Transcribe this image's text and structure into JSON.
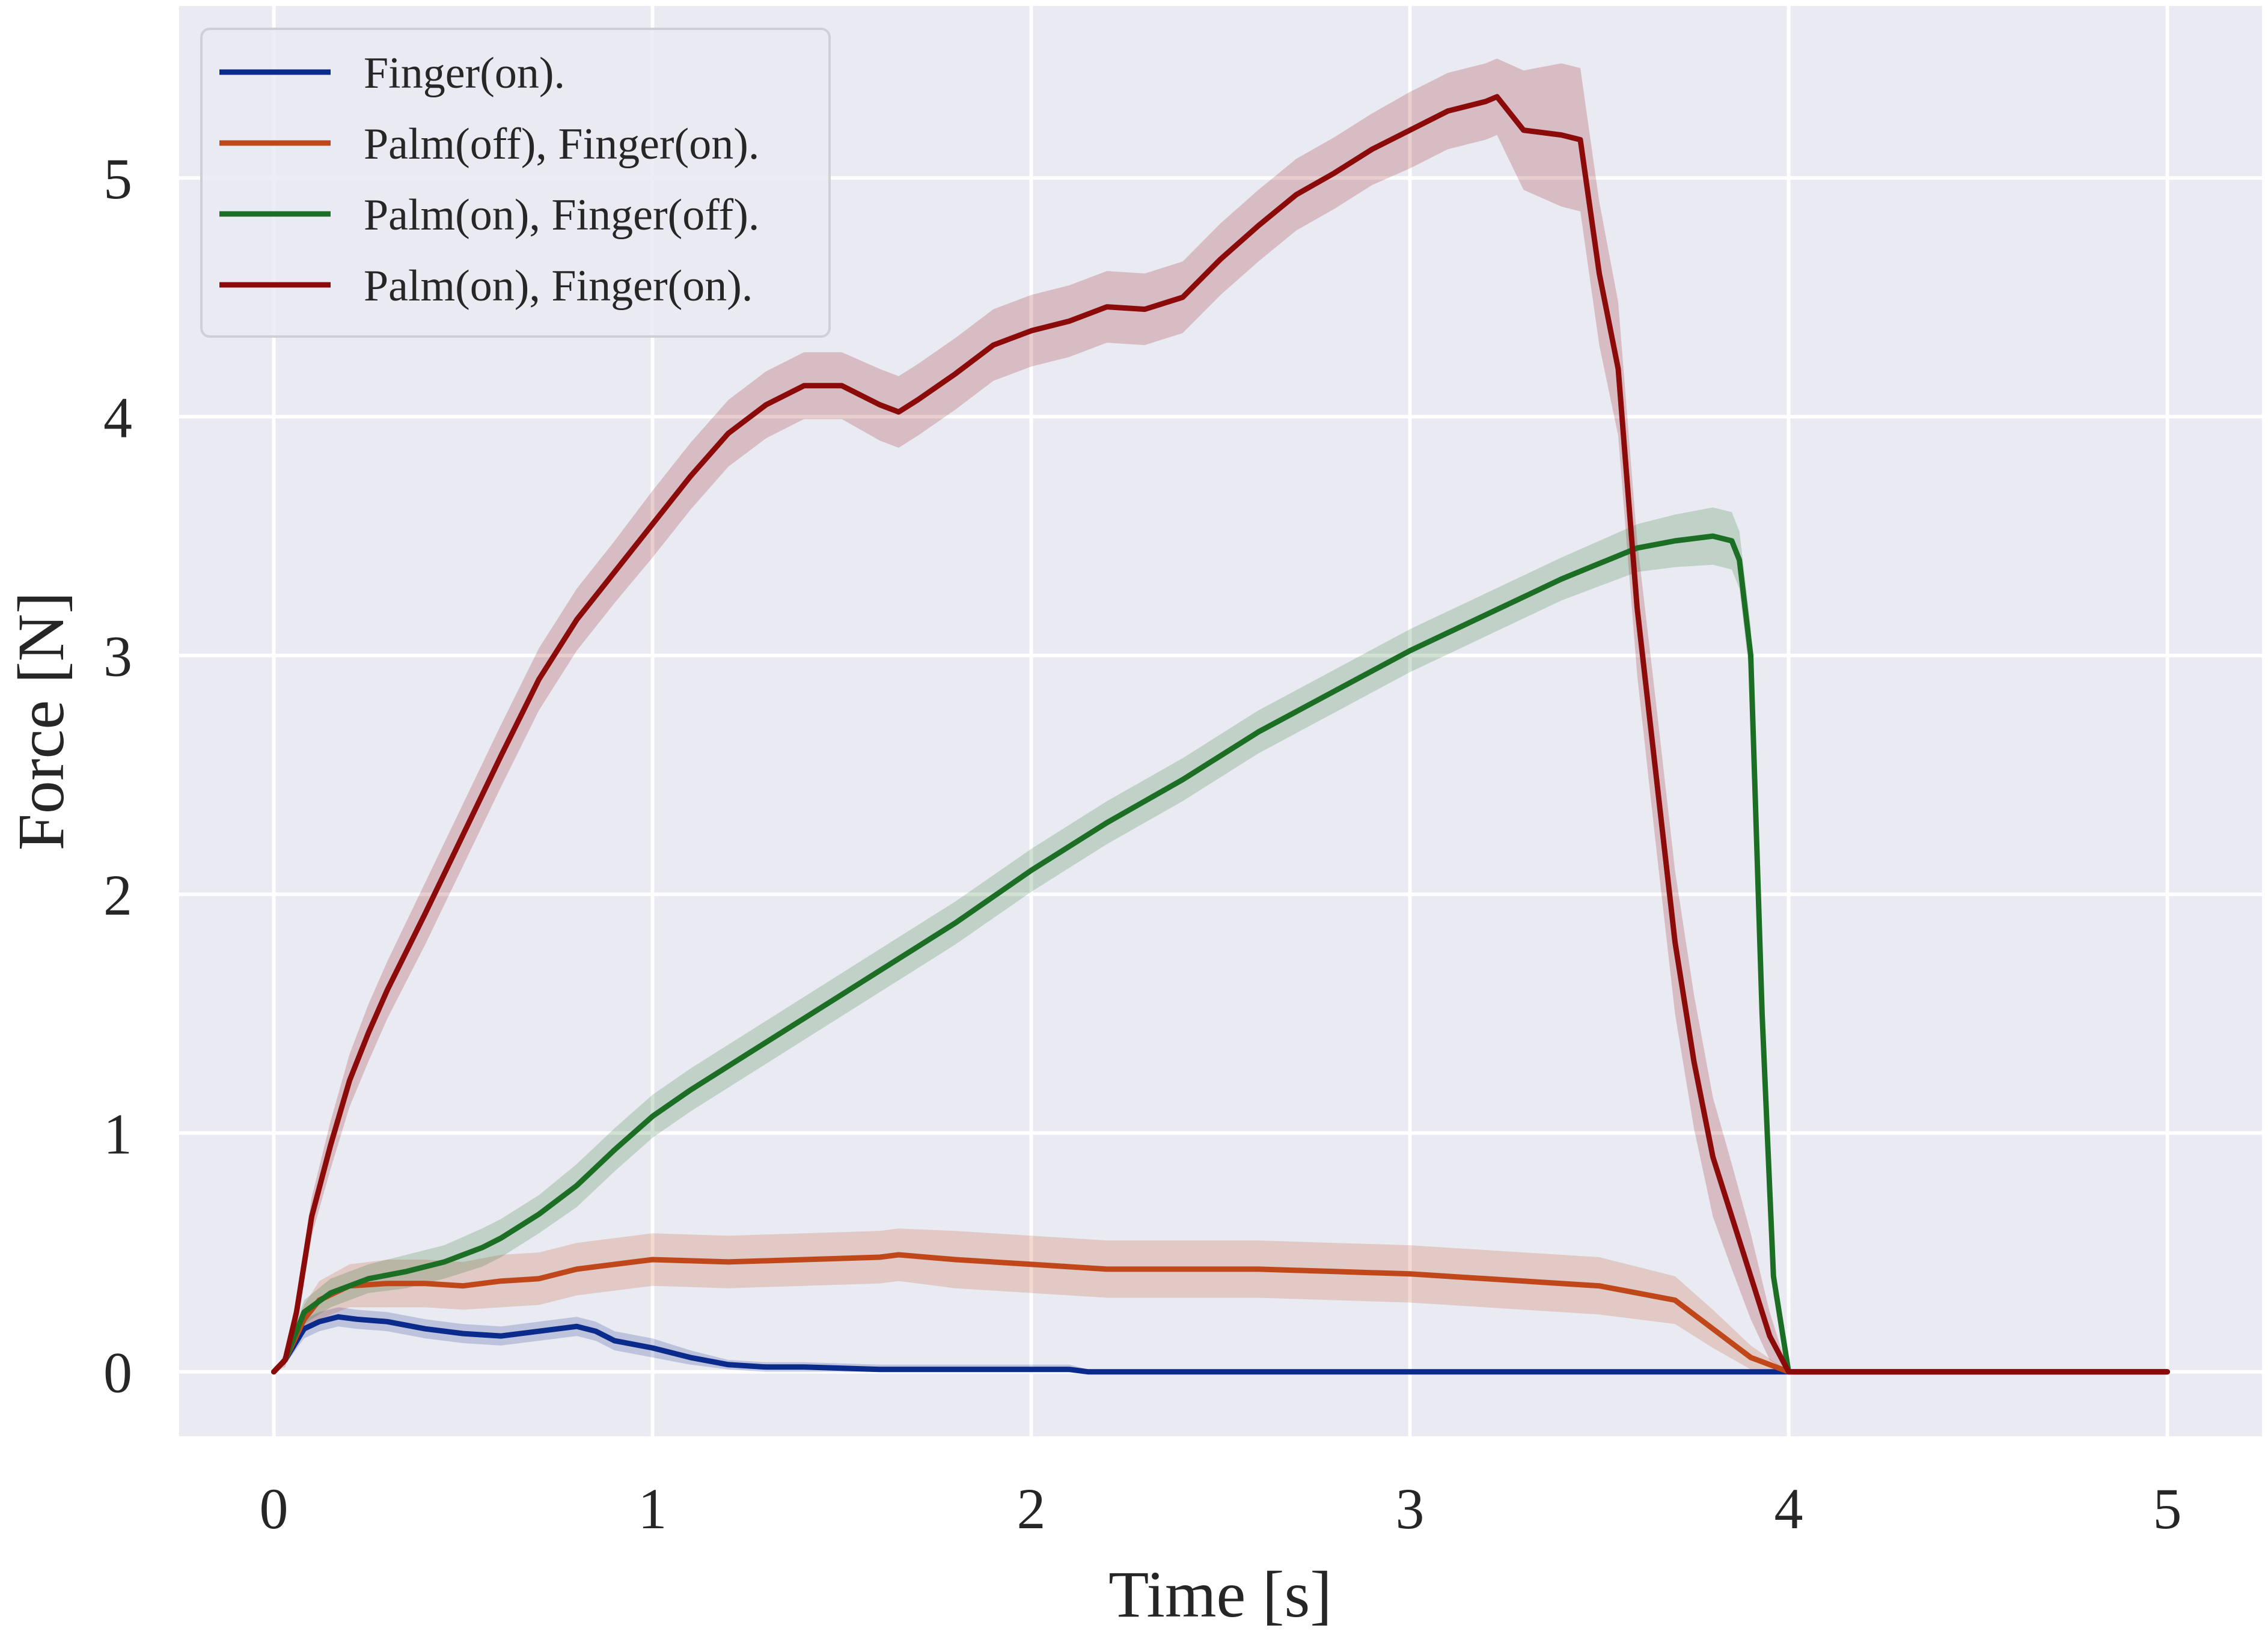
{
  "chart_data": {
    "type": "line",
    "title": "",
    "xlabel": "Time [s]",
    "ylabel": "Force [N]",
    "xlim": [
      -0.25,
      5.25
    ],
    "ylim": [
      -0.27,
      5.72
    ],
    "xticks": [
      0,
      1,
      2,
      3,
      4,
      5
    ],
    "yticks": [
      0,
      1,
      2,
      3,
      4,
      5
    ],
    "grid": true,
    "legend_position": "top-left",
    "background": "#EAEAF2",
    "series": [
      {
        "name": "Finger(on).",
        "color": "#0A2A8C",
        "x": [
          0,
          0.03,
          0.08,
          0.12,
          0.17,
          0.22,
          0.3,
          0.4,
          0.5,
          0.6,
          0.7,
          0.8,
          0.85,
          0.9,
          1.0,
          1.1,
          1.2,
          1.3,
          1.4,
          1.6,
          1.8,
          2.0,
          2.1,
          2.15,
          2.2,
          2.5,
          3.0,
          3.5,
          4.0,
          4.5,
          5.0
        ],
        "y": [
          0,
          0.05,
          0.18,
          0.21,
          0.23,
          0.22,
          0.21,
          0.18,
          0.16,
          0.15,
          0.17,
          0.19,
          0.17,
          0.13,
          0.1,
          0.06,
          0.03,
          0.02,
          0.02,
          0.01,
          0.01,
          0.01,
          0.01,
          0.0,
          0.0,
          0.0,
          0.0,
          0.0,
          0.0,
          0.0,
          0.0
        ],
        "band": [
          0,
          0.02,
          0.04,
          0.04,
          0.04,
          0.04,
          0.04,
          0.04,
          0.04,
          0.04,
          0.04,
          0.04,
          0.04,
          0.04,
          0.04,
          0.03,
          0.02,
          0.02,
          0.02,
          0.02,
          0.02,
          0.02,
          0.02,
          0.01,
          0.0,
          0.0,
          0.0,
          0.0,
          0.0,
          0.0,
          0.0
        ]
      },
      {
        "name": "Palm(off), Finger(on).",
        "color": "#C0471A",
        "x": [
          0,
          0.03,
          0.08,
          0.12,
          0.2,
          0.3,
          0.4,
          0.5,
          0.6,
          0.7,
          0.8,
          0.9,
          1.0,
          1.2,
          1.4,
          1.6,
          1.65,
          1.8,
          2.0,
          2.2,
          2.4,
          2.6,
          2.8,
          3.0,
          3.2,
          3.4,
          3.5,
          3.6,
          3.7,
          3.8,
          3.9,
          4.0,
          4.5,
          5.0
        ],
        "y": [
          0,
          0.05,
          0.22,
          0.3,
          0.36,
          0.37,
          0.37,
          0.36,
          0.38,
          0.39,
          0.43,
          0.45,
          0.47,
          0.46,
          0.47,
          0.48,
          0.49,
          0.47,
          0.45,
          0.43,
          0.43,
          0.43,
          0.42,
          0.41,
          0.39,
          0.37,
          0.36,
          0.33,
          0.3,
          0.18,
          0.06,
          0.0,
          0.0,
          0.0
        ],
        "band": [
          0,
          0.02,
          0.06,
          0.08,
          0.09,
          0.1,
          0.1,
          0.1,
          0.11,
          0.11,
          0.11,
          0.11,
          0.11,
          0.11,
          0.11,
          0.11,
          0.11,
          0.12,
          0.12,
          0.12,
          0.12,
          0.12,
          0.12,
          0.12,
          0.12,
          0.12,
          0.12,
          0.11,
          0.1,
          0.08,
          0.05,
          0.0,
          0.0,
          0.0
        ]
      },
      {
        "name": "Palm(on), Finger(off).",
        "color": "#1B6E24",
        "x": [
          0,
          0.03,
          0.08,
          0.15,
          0.25,
          0.35,
          0.45,
          0.55,
          0.6,
          0.7,
          0.8,
          0.9,
          1.0,
          1.1,
          1.2,
          1.4,
          1.6,
          1.8,
          2.0,
          2.2,
          2.4,
          2.6,
          2.8,
          3.0,
          3.2,
          3.4,
          3.6,
          3.7,
          3.8,
          3.85,
          3.87,
          3.9,
          3.93,
          3.96,
          4.0,
          4.5,
          5.0
        ],
        "y": [
          0,
          0.05,
          0.25,
          0.33,
          0.39,
          0.42,
          0.46,
          0.52,
          0.56,
          0.66,
          0.78,
          0.93,
          1.07,
          1.18,
          1.28,
          1.48,
          1.68,
          1.88,
          2.1,
          2.3,
          2.48,
          2.68,
          2.85,
          3.02,
          3.17,
          3.32,
          3.45,
          3.48,
          3.5,
          3.48,
          3.4,
          3.0,
          1.5,
          0.4,
          0.0,
          0.0,
          0.0
        ],
        "band": [
          0,
          0.02,
          0.05,
          0.06,
          0.06,
          0.07,
          0.07,
          0.08,
          0.08,
          0.08,
          0.09,
          0.09,
          0.09,
          0.09,
          0.09,
          0.09,
          0.09,
          0.09,
          0.09,
          0.09,
          0.09,
          0.09,
          0.09,
          0.09,
          0.09,
          0.09,
          0.1,
          0.11,
          0.12,
          0.12,
          0.12,
          0.12,
          0.1,
          0.08,
          0.0,
          0.0,
          0.0
        ]
      },
      {
        "name": "Palm(on), Finger(on).",
        "color": "#8B0A0A",
        "x": [
          0,
          0.03,
          0.06,
          0.1,
          0.15,
          0.2,
          0.25,
          0.3,
          0.4,
          0.5,
          0.6,
          0.7,
          0.8,
          0.9,
          1.0,
          1.1,
          1.2,
          1.3,
          1.4,
          1.5,
          1.6,
          1.65,
          1.7,
          1.8,
          1.9,
          2.0,
          2.1,
          2.2,
          2.3,
          2.4,
          2.5,
          2.6,
          2.7,
          2.8,
          2.9,
          3.0,
          3.1,
          3.2,
          3.23,
          3.3,
          3.4,
          3.45,
          3.5,
          3.55,
          3.6,
          3.65,
          3.7,
          3.75,
          3.8,
          3.85,
          3.9,
          3.95,
          4.0,
          4.5,
          5.0
        ],
        "y": [
          0,
          0.05,
          0.25,
          0.65,
          0.95,
          1.22,
          1.42,
          1.6,
          1.92,
          2.25,
          2.58,
          2.9,
          3.15,
          3.35,
          3.55,
          3.75,
          3.93,
          4.05,
          4.13,
          4.13,
          4.05,
          4.02,
          4.07,
          4.18,
          4.3,
          4.36,
          4.4,
          4.46,
          4.45,
          4.5,
          4.66,
          4.8,
          4.93,
          5.02,
          5.12,
          5.2,
          5.28,
          5.32,
          5.34,
          5.2,
          5.18,
          5.16,
          4.6,
          4.2,
          3.2,
          2.5,
          1.8,
          1.3,
          0.9,
          0.65,
          0.4,
          0.15,
          0.0,
          0.0,
          0.0
        ],
        "band": [
          0,
          0.03,
          0.06,
          0.08,
          0.1,
          0.11,
          0.12,
          0.12,
          0.13,
          0.13,
          0.13,
          0.13,
          0.13,
          0.13,
          0.14,
          0.14,
          0.14,
          0.14,
          0.14,
          0.14,
          0.15,
          0.15,
          0.15,
          0.15,
          0.15,
          0.15,
          0.15,
          0.15,
          0.15,
          0.15,
          0.15,
          0.15,
          0.15,
          0.15,
          0.15,
          0.16,
          0.16,
          0.16,
          0.16,
          0.25,
          0.3,
          0.3,
          0.3,
          0.28,
          0.28,
          0.3,
          0.3,
          0.28,
          0.25,
          0.22,
          0.18,
          0.1,
          0.0,
          0.0,
          0.0
        ]
      }
    ]
  }
}
